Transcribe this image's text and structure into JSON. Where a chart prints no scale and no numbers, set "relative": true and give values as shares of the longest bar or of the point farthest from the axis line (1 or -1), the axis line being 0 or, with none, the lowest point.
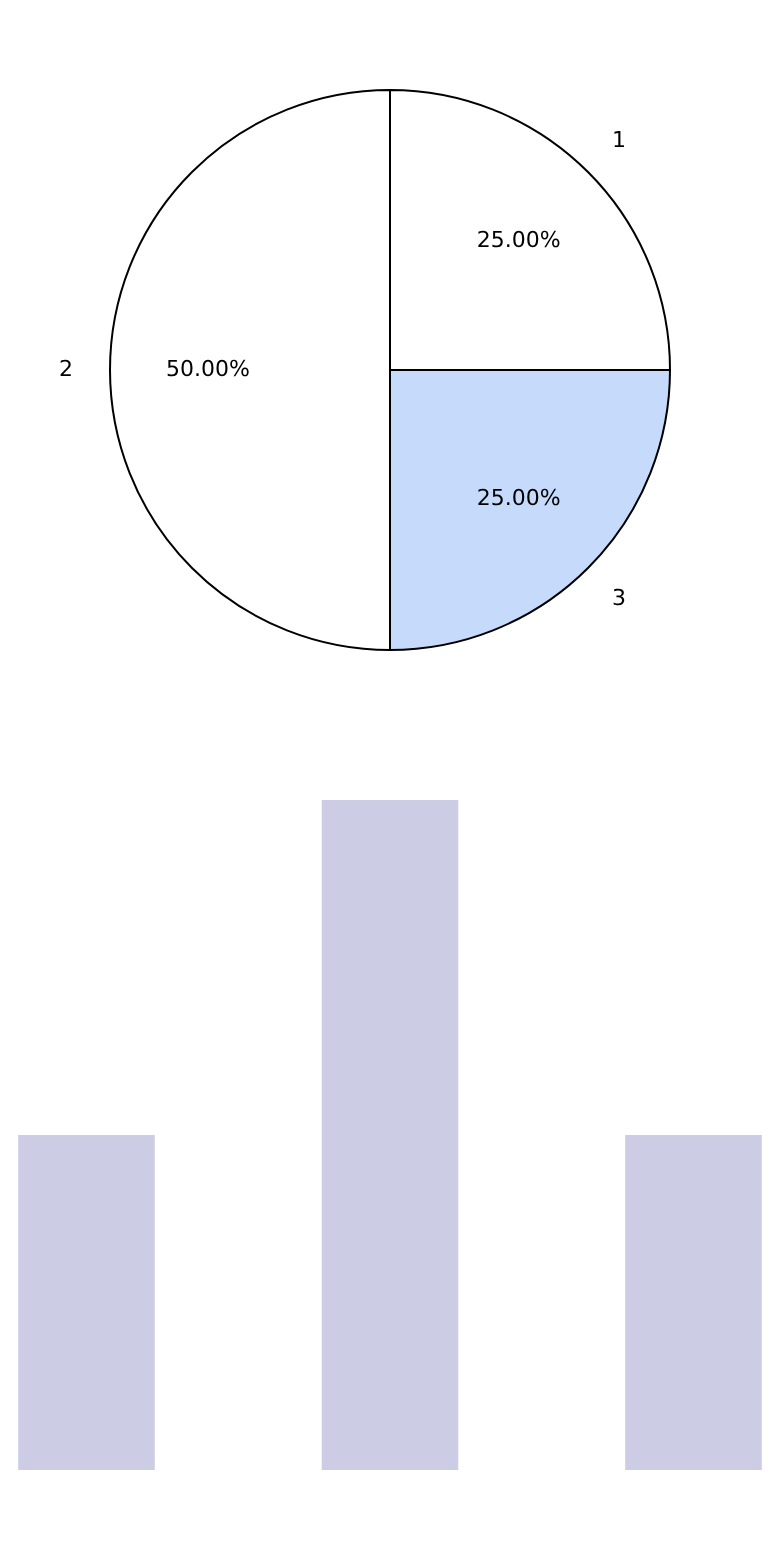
{
  "chart_data": [
    {
      "type": "pie",
      "categories": [
        "1",
        "3",
        "2"
      ],
      "values": [
        25,
        25,
        50
      ],
      "colors": [
        "#ffffff",
        "#c6dafc",
        "#ffffff"
      ],
      "value_labels": [
        "25.00%",
        "25.00%",
        "50.00%"
      ]
    },
    {
      "type": "bar",
      "relative": true,
      "categories": [
        null,
        null,
        null
      ],
      "values": [
        0.5,
        1,
        0.5
      ],
      "color": "#cccce4"
    }
  ]
}
